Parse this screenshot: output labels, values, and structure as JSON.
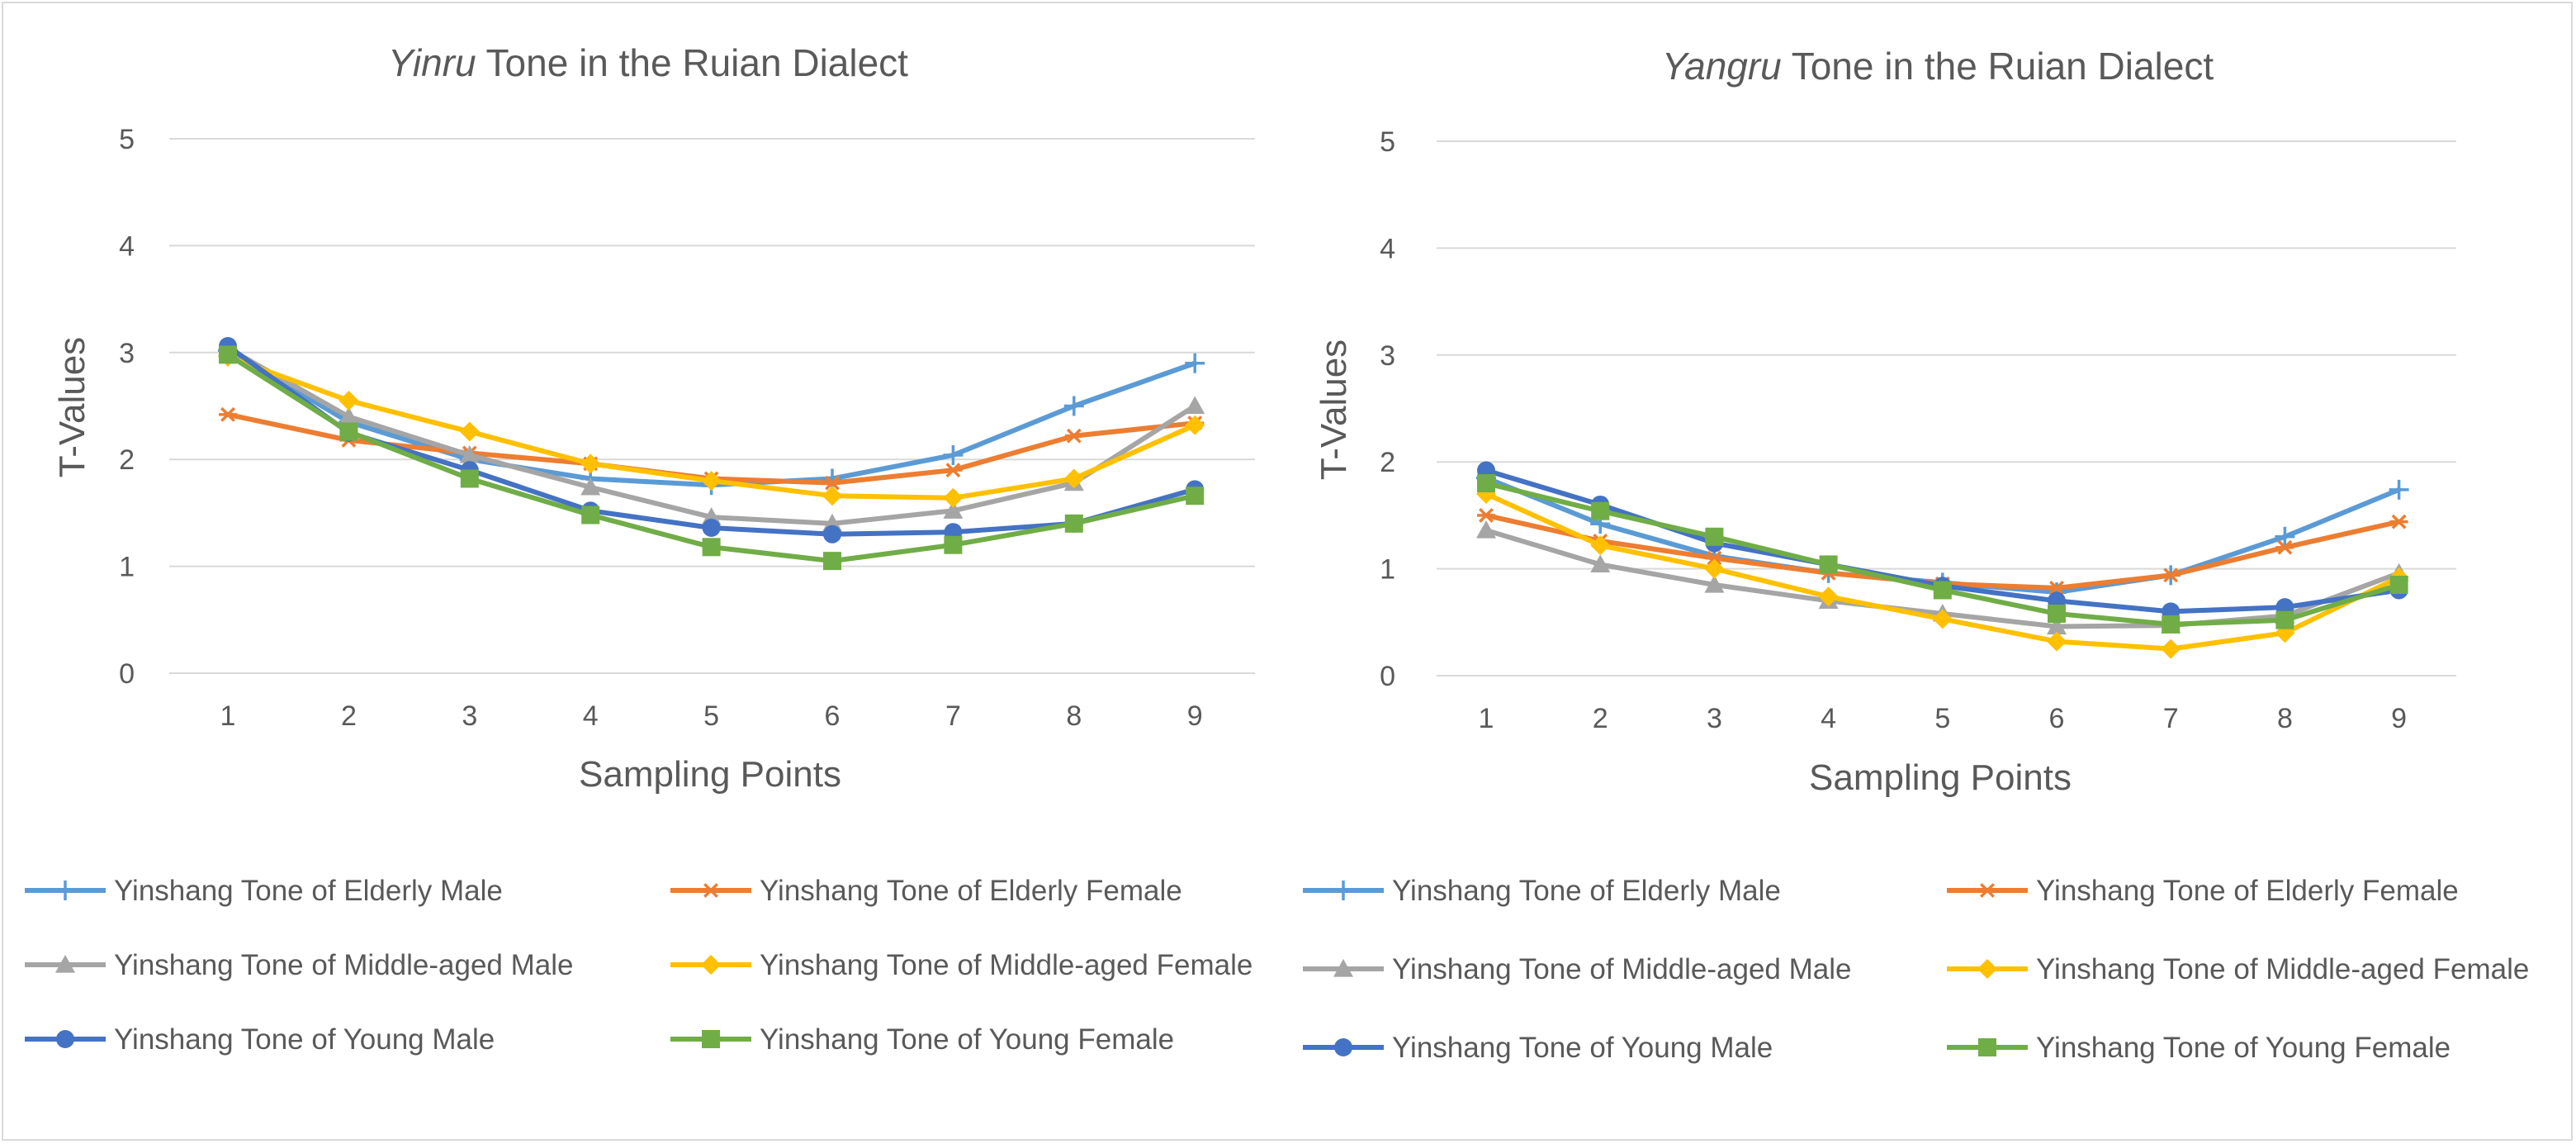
{
  "colors": {
    "elderly_male": "#5b9bd5",
    "elderly_female": "#ed7d31",
    "middle_male": "#a5a5a5",
    "middle_female": "#ffc000",
    "young_male": "#4472c4",
    "young_female": "#70ad47",
    "grid": "#d9d9d9"
  },
  "chart_data": [
    {
      "type": "line",
      "title_italic": "Yinru",
      "title_rest": " Tone in the Ruian Dialect",
      "xlabel": "Sampling Points",
      "ylabel": "T-Values",
      "x": [
        1,
        2,
        3,
        4,
        5,
        6,
        7,
        8,
        9
      ],
      "ylim": [
        0,
        5
      ],
      "yticks": [
        0,
        1,
        2,
        3,
        4,
        5
      ],
      "series": [
        {
          "name": "Yinshang Tone of Elderly Male",
          "color": "#5b9bd5",
          "marker": "plus",
          "values": [
            3.02,
            2.35,
            2.0,
            1.82,
            1.76,
            1.82,
            2.04,
            2.5,
            2.9
          ]
        },
        {
          "name": "Yinshang Tone of Elderly Female",
          "color": "#ed7d31",
          "marker": "star",
          "values": [
            2.42,
            2.18,
            2.06,
            1.96,
            1.82,
            1.78,
            1.9,
            2.22,
            2.34
          ]
        },
        {
          "name": "Yinshang Tone of Middle-aged Male",
          "color": "#a5a5a5",
          "marker": "triangle",
          "values": [
            3.04,
            2.4,
            2.04,
            1.74,
            1.46,
            1.4,
            1.52,
            1.78,
            2.5
          ]
        },
        {
          "name": "Yinshang Tone of Middle-aged Female",
          "color": "#ffc000",
          "marker": "diamond",
          "values": [
            2.96,
            2.55,
            2.26,
            1.96,
            1.8,
            1.66,
            1.64,
            1.82,
            2.32
          ]
        },
        {
          "name": "Yinshang Tone of Young Male",
          "color": "#4472c4",
          "marker": "circle",
          "values": [
            3.06,
            2.25,
            1.9,
            1.52,
            1.36,
            1.3,
            1.32,
            1.4,
            1.72
          ]
        },
        {
          "name": "Yinshang Tone of Young Female",
          "color": "#70ad47",
          "marker": "square",
          "values": [
            2.98,
            2.26,
            1.82,
            1.48,
            1.18,
            1.05,
            1.2,
            1.4,
            1.66
          ]
        }
      ]
    },
    {
      "type": "line",
      "title_italic": "Yangru",
      "title_rest": " Tone in the Ruian Dialect",
      "xlabel": "Sampling Points",
      "ylabel": "T-Values",
      "x": [
        1,
        2,
        3,
        4,
        5,
        6,
        7,
        8,
        9
      ],
      "ylim": [
        0,
        5
      ],
      "yticks": [
        0,
        1,
        2,
        3,
        4,
        5
      ],
      "series": [
        {
          "name": "Yinshang Tone of Elderly Male",
          "color": "#5b9bd5",
          "marker": "plus",
          "values": [
            1.85,
            1.42,
            1.12,
            0.96,
            0.87,
            0.78,
            0.94,
            1.3,
            1.74
          ]
        },
        {
          "name": "Yinshang Tone of Elderly Female",
          "color": "#ed7d31",
          "marker": "star",
          "values": [
            1.5,
            1.26,
            1.1,
            0.96,
            0.86,
            0.82,
            0.94,
            1.2,
            1.44
          ]
        },
        {
          "name": "Yinshang Tone of Middle-aged Male",
          "color": "#a5a5a5",
          "marker": "triangle",
          "values": [
            1.36,
            1.04,
            0.85,
            0.7,
            0.58,
            0.46,
            0.47,
            0.56,
            0.96
          ]
        },
        {
          "name": "Yinshang Tone of Middle-aged Female",
          "color": "#ffc000",
          "marker": "diamond",
          "values": [
            1.7,
            1.22,
            1.0,
            0.74,
            0.53,
            0.32,
            0.25,
            0.4,
            0.92
          ]
        },
        {
          "name": "Yinshang Tone of Young Male",
          "color": "#4472c4",
          "marker": "circle",
          "values": [
            1.92,
            1.6,
            1.24,
            1.04,
            0.84,
            0.7,
            0.6,
            0.64,
            0.8
          ]
        },
        {
          "name": "Yinshang Tone of Young Female",
          "color": "#70ad47",
          "marker": "square",
          "values": [
            1.8,
            1.54,
            1.3,
            1.04,
            0.8,
            0.58,
            0.48,
            0.52,
            0.85
          ]
        }
      ]
    }
  ]
}
